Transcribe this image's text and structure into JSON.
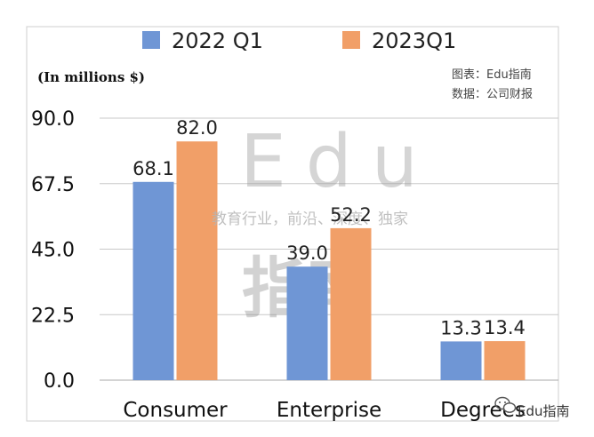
{
  "chart_data": {
    "type": "bar",
    "unit_label": "(In millions $)",
    "categories": [
      "Consumer",
      "Enterprise",
      "Degrees"
    ],
    "series": [
      {
        "name": "2022 Q1",
        "values": [
          68.1,
          39.0,
          13.3
        ],
        "labels": [
          "68.1",
          "39.0",
          "13.3"
        ]
      },
      {
        "name": "2023Q1",
        "values": [
          82.0,
          52.2,
          13.4
        ],
        "labels": [
          "82.0",
          "52.2",
          "13.4"
        ]
      }
    ],
    "ylim": [
      0,
      90
    ],
    "yticks": [
      "0.0",
      "22.5",
      "45.0",
      "67.5",
      "90.0"
    ],
    "ytick_values": [
      0,
      22.5,
      45,
      67.5,
      90
    ],
    "grid": true,
    "legend_position": "top"
  },
  "colors": {
    "series_0": "#6f96d5",
    "series_1": "#f19f68",
    "grid": "#c8c8c8",
    "border": "#cfcfcf"
  },
  "source": {
    "chart_credit": "图表：Edu指南",
    "data_credit": "数据：公司财报"
  },
  "watermark": {
    "big_text": "Edu",
    "cjk_text": "指南",
    "tagline": "教育行业，前沿、深度、独家",
    "corner_text": "Edu指南",
    "icon": "wechat-icon"
  }
}
